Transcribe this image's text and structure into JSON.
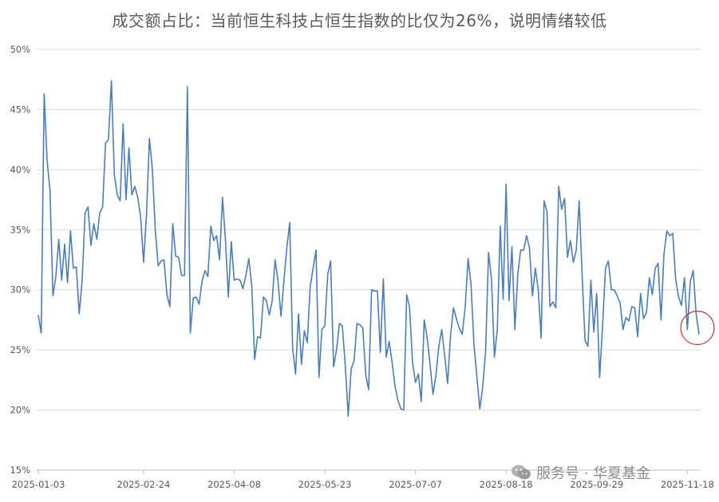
{
  "chart_data": {
    "type": "line",
    "title": "成交额占比：当前恒生科技占恒生指数的比仅为26%，说明情绪较低",
    "xlabel": "",
    "ylabel": "",
    "ylim": [
      0.15,
      0.5
    ],
    "ytick_values": [
      0.15,
      0.2,
      0.25,
      0.3,
      0.35,
      0.4,
      0.45,
      0.5
    ],
    "ytick_labels": [
      "15%",
      "20%",
      "25%",
      "30%",
      "35%",
      "40%",
      "45%",
      "50%"
    ],
    "xtick_labels": [
      "2025-01-03",
      "2025-02-24",
      "2025-04-08",
      "2025-05-23",
      "2025-07-07",
      "2025-08-18",
      "2025-09-29",
      "2025-11-18"
    ],
    "xtick_indices": [
      0,
      36,
      67,
      98,
      129,
      160,
      191,
      222
    ],
    "grid": "horizontal",
    "line_color": "#4a7ebb",
    "highlight_color": "#c0392b",
    "highlight_last_point": true,
    "series": [
      {
        "values": [
          0.279,
          0.264,
          0.463,
          0.408,
          0.383,
          0.295,
          0.311,
          0.342,
          0.308,
          0.338,
          0.306,
          0.349,
          0.318,
          0.319,
          0.28,
          0.308,
          0.364,
          0.369,
          0.337,
          0.355,
          0.342,
          0.364,
          0.369,
          0.422,
          0.425,
          0.474,
          0.396,
          0.379,
          0.374,
          0.438,
          0.375,
          0.418,
          0.379,
          0.386,
          0.377,
          0.361,
          0.323,
          0.362,
          0.426,
          0.401,
          0.35,
          0.32,
          0.324,
          0.325,
          0.296,
          0.286,
          0.355,
          0.328,
          0.327,
          0.312,
          0.312,
          0.469,
          0.264,
          0.293,
          0.294,
          0.288,
          0.307,
          0.316,
          0.311,
          0.353,
          0.341,
          0.345,
          0.325,
          0.377,
          0.342,
          0.294,
          0.34,
          0.308,
          0.309,
          0.308,
          0.301,
          0.312,
          0.326,
          0.304,
          0.242,
          0.261,
          0.26,
          0.294,
          0.291,
          0.279,
          0.291,
          0.325,
          0.307,
          0.278,
          0.307,
          0.335,
          0.356,
          0.251,
          0.23,
          0.28,
          0.238,
          0.266,
          0.256,
          0.303,
          0.318,
          0.333,
          0.227,
          0.267,
          0.27,
          0.313,
          0.324,
          0.236,
          0.25,
          0.272,
          0.27,
          0.237,
          0.195,
          0.234,
          0.241,
          0.272,
          0.271,
          0.268,
          0.229,
          0.217,
          0.3,
          0.299,
          0.299,
          0.248,
          0.309,
          0.244,
          0.257,
          0.24,
          0.22,
          0.208,
          0.201,
          0.2,
          0.296,
          0.285,
          0.24,
          0.223,
          0.23,
          0.207,
          0.275,
          0.26,
          0.238,
          0.213,
          0.229,
          0.253,
          0.267,
          0.245,
          0.222,
          0.262,
          0.285,
          0.276,
          0.268,
          0.263,
          0.285,
          0.326,
          0.305,
          0.255,
          0.228,
          0.201,
          0.219,
          0.249,
          0.331,
          0.309,
          0.244,
          0.267,
          0.353,
          0.292,
          0.388,
          0.291,
          0.336,
          0.267,
          0.313,
          0.333,
          0.333,
          0.345,
          0.335,
          0.295,
          0.318,
          0.3,
          0.26,
          0.374,
          0.365,
          0.286,
          0.29,
          0.285,
          0.386,
          0.367,
          0.376,
          0.327,
          0.341,
          0.323,
          0.333,
          0.374,
          0.313,
          0.258,
          0.253,
          0.308,
          0.265,
          0.297,
          0.227,
          0.27,
          0.318,
          0.324,
          0.3,
          0.3,
          0.295,
          0.289,
          0.267,
          0.277,
          0.274,
          0.286,
          0.285,
          0.261,
          0.297,
          0.276,
          0.281,
          0.31,
          0.296,
          0.318,
          0.322,
          0.275,
          0.33,
          0.349,
          0.345,
          0.347,
          0.309,
          0.294,
          0.287,
          0.31,
          0.267,
          0.307,
          0.316,
          0.28,
          0.263
        ]
      }
    ]
  },
  "watermark": {
    "text": "服务号 · 华夏基金",
    "icon": "wechat-icon"
  }
}
